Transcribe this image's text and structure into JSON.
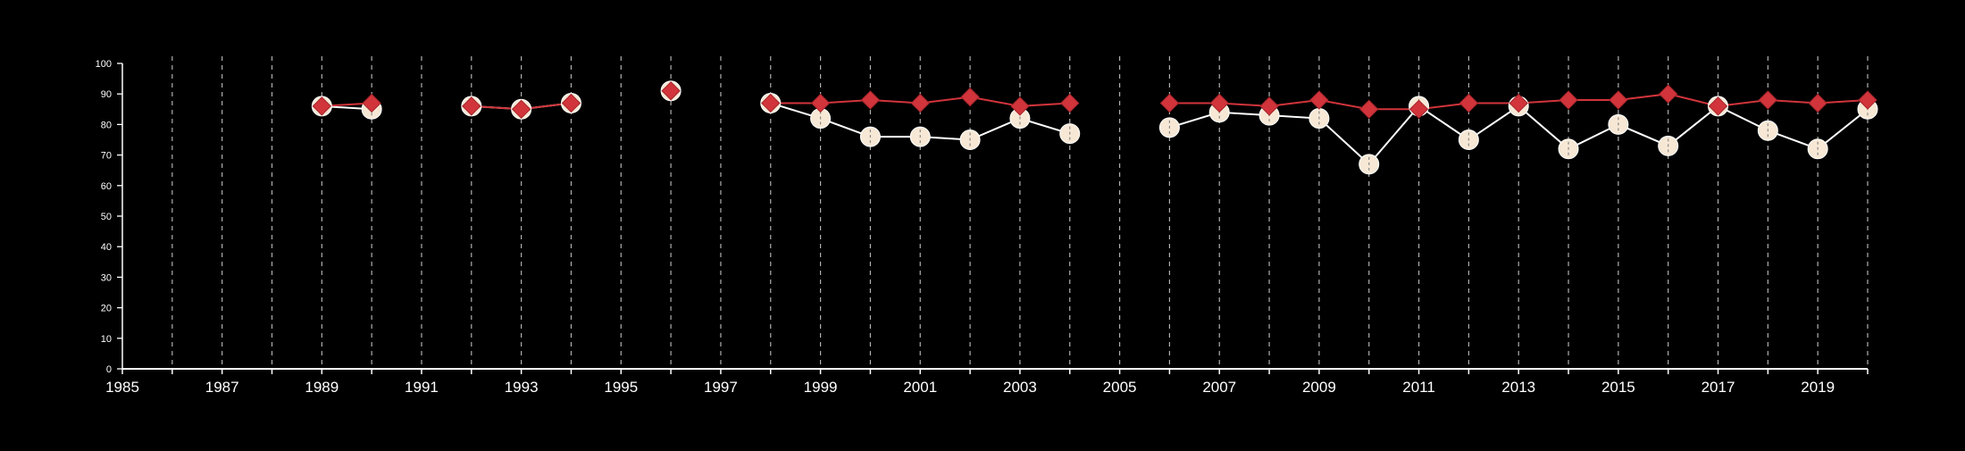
{
  "chart_data": {
    "type": "line",
    "title": "",
    "xlabel": "",
    "ylabel": "",
    "xlim": [
      1985,
      2020
    ],
    "ylim": [
      0,
      100
    ],
    "x_ticks": [
      1985,
      1987,
      1989,
      1991,
      1993,
      1995,
      1997,
      1999,
      2001,
      2003,
      2005,
      2007,
      2009,
      2011,
      2013,
      2015,
      2017,
      2019
    ],
    "y_ticks": [
      0,
      10,
      20,
      30,
      40,
      50,
      60,
      70,
      80,
      90,
      100
    ],
    "vertical_grid_years": [
      1986,
      1987,
      1988,
      1989,
      1990,
      1991,
      1992,
      1993,
      1994,
      1995,
      1996,
      1997,
      1998,
      1999,
      2000,
      2001,
      2002,
      2003,
      2004,
      2005,
      2006,
      2007,
      2008,
      2009,
      2010,
      2011,
      2012,
      2013,
      2014,
      2015,
      2016,
      2017,
      2018,
      2019,
      2020
    ],
    "grid": "vertical dashed",
    "legend": "none",
    "colors": {
      "background": "#000000",
      "axis": "#ffffff",
      "grid": "#cfcfcf",
      "series_circle_fill": "#f7e8d5",
      "series_circle_line": "#ffffff",
      "series_diamond": "#d1343b"
    },
    "series": [
      {
        "marker": "circle",
        "points": [
          [
            1989,
            86
          ],
          [
            1990,
            85
          ],
          [
            1992,
            86
          ],
          [
            1993,
            85
          ],
          [
            1994,
            87
          ],
          [
            1996,
            91
          ],
          [
            1998,
            87
          ],
          [
            1999,
            82
          ],
          [
            2000,
            76
          ],
          [
            2001,
            76
          ],
          [
            2002,
            75
          ],
          [
            2003,
            82
          ],
          [
            2004,
            77
          ],
          [
            2006,
            79
          ],
          [
            2007,
            84
          ],
          [
            2008,
            83
          ],
          [
            2009,
            82
          ],
          [
            2010,
            67
          ],
          [
            2011,
            86
          ],
          [
            2012,
            75
          ],
          [
            2013,
            86
          ],
          [
            2014,
            72
          ],
          [
            2015,
            80
          ],
          [
            2016,
            73
          ],
          [
            2017,
            86
          ],
          [
            2018,
            78
          ],
          [
            2019,
            72
          ],
          [
            2020,
            85
          ]
        ]
      },
      {
        "marker": "diamond",
        "points": [
          [
            1989,
            86
          ],
          [
            1990,
            87
          ],
          [
            1992,
            86
          ],
          [
            1993,
            85
          ],
          [
            1994,
            87
          ],
          [
            1996,
            91
          ],
          [
            1998,
            87
          ],
          [
            1999,
            87
          ],
          [
            2000,
            88
          ],
          [
            2001,
            87
          ],
          [
            2002,
            89
          ],
          [
            2003,
            86
          ],
          [
            2004,
            87
          ],
          [
            2006,
            87
          ],
          [
            2007,
            87
          ],
          [
            2008,
            86
          ],
          [
            2009,
            88
          ],
          [
            2010,
            85
          ],
          [
            2011,
            85
          ],
          [
            2012,
            87
          ],
          [
            2013,
            87
          ],
          [
            2014,
            88
          ],
          [
            2015,
            88
          ],
          [
            2016,
            90
          ],
          [
            2017,
            86
          ],
          [
            2018,
            88
          ],
          [
            2019,
            87
          ],
          [
            2020,
            88
          ]
        ]
      }
    ]
  }
}
